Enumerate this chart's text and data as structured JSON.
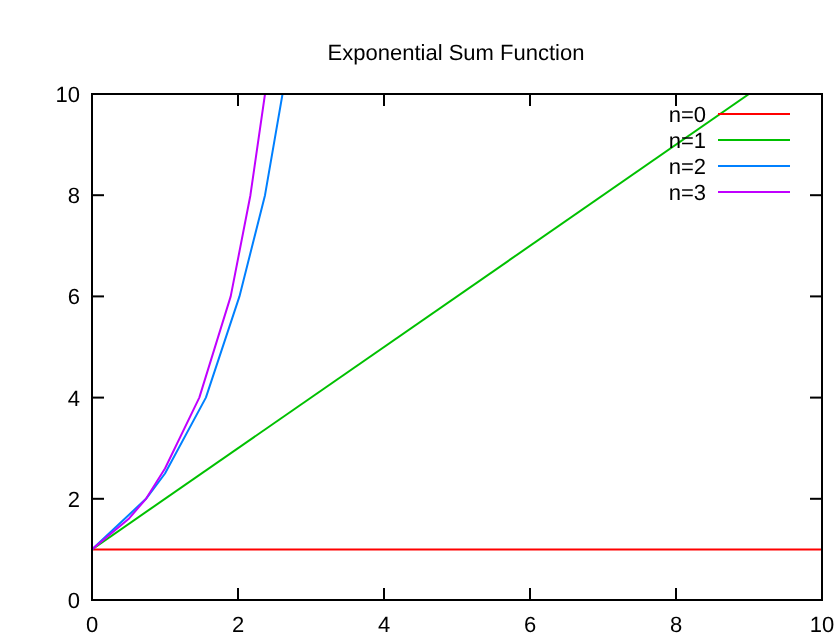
{
  "chart_data": {
    "type": "line",
    "title": "Exponential Sum Function",
    "xlim": [
      0,
      10
    ],
    "ylim": [
      0,
      10
    ],
    "xticks": [
      0,
      2,
      4,
      6,
      8,
      10
    ],
    "yticks": [
      0,
      2,
      4,
      6,
      8,
      10
    ],
    "grid": false,
    "legend": "top right",
    "series": [
      {
        "name": "n=0",
        "color": "#ff0000",
        "x": [
          0,
          10
        ],
        "values": [
          1,
          1
        ]
      },
      {
        "name": "n=1",
        "color": "#00c000",
        "x": [
          0,
          9
        ],
        "values": [
          1,
          10
        ]
      },
      {
        "name": "n=2",
        "color": "#0080ff",
        "x": [
          0,
          0.74,
          1,
          1.56,
          2.02,
          2.37,
          2.61
        ],
        "values": [
          1,
          2,
          2.5,
          4,
          6,
          8,
          10
        ]
      },
      {
        "name": "n=3",
        "color": "#c000ff",
        "x": [
          0,
          0.5,
          0.74,
          1,
          1.47,
          1.9,
          2.17,
          2.37
        ],
        "values": [
          1,
          1.6,
          2,
          2.6,
          4,
          6,
          8,
          10
        ]
      }
    ]
  }
}
